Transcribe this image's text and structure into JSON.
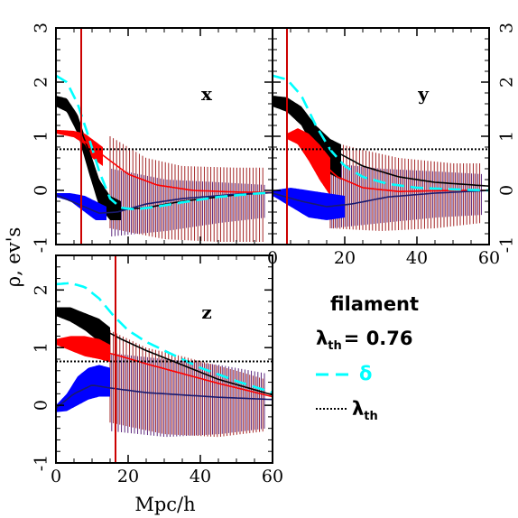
{
  "figure": {
    "xlabel": "Mpc/h",
    "ylabel": "ρ, ev's",
    "colors": {
      "black_band": "#000000",
      "red_band": "#ff0000",
      "blue_band": "#0000ff",
      "red_errorbars": "#9a0f0f",
      "purple_errorbars": "#4a1070",
      "navy_errorbars": "#1a1a6e",
      "delta_curve": "#00ffff",
      "threshold_line": "#000000",
      "vertical_marker": "#cc0000"
    }
  },
  "legend": {
    "title": "filament",
    "threshold_label": "λ",
    "threshold_sub": "th",
    "threshold_value": "= 0.76",
    "delta_label": "δ",
    "line_label": "λ",
    "line_sub": "th"
  },
  "chart_data": [
    {
      "type": "line",
      "panel": "x",
      "xlim": [
        0,
        60
      ],
      "ylim": [
        -1,
        3
      ],
      "xticks": [
        "0",
        "20",
        "40",
        "60"
      ],
      "yticks": [
        "-1",
        "0",
        "1",
        "2",
        "3"
      ],
      "show_xticklabels": false,
      "show_yticklabels": "left",
      "threshold": 0.76,
      "vline": 7,
      "delta": [
        [
          0,
          2.12
        ],
        [
          3,
          2.0
        ],
        [
          6,
          1.6
        ],
        [
          9,
          1.0
        ],
        [
          12,
          0.35
        ],
        [
          15,
          -0.15
        ],
        [
          18,
          -0.32
        ],
        [
          22,
          -0.35
        ],
        [
          28,
          -0.3
        ],
        [
          35,
          -0.22
        ],
        [
          45,
          -0.12
        ],
        [
          55,
          -0.06
        ],
        [
          60,
          -0.04
        ]
      ],
      "black": {
        "upper": [
          [
            0,
            1.75
          ],
          [
            3,
            1.7
          ],
          [
            6,
            1.4
          ],
          [
            9,
            0.8
          ],
          [
            12,
            0.2
          ],
          [
            15,
            -0.1
          ],
          [
            18,
            -0.2
          ]
        ],
        "lower": [
          [
            0,
            1.55
          ],
          [
            3,
            1.45
          ],
          [
            6,
            1.05
          ],
          [
            9,
            0.35
          ],
          [
            12,
            -0.3
          ],
          [
            15,
            -0.55
          ],
          [
            18,
            -0.55
          ]
        ],
        "mean": [
          [
            0,
            1.65
          ],
          [
            5,
            1.45
          ],
          [
            9,
            0.75
          ],
          [
            13,
            -0.05
          ],
          [
            18,
            -0.35
          ],
          [
            25,
            -0.32
          ],
          [
            35,
            -0.2
          ],
          [
            50,
            -0.08
          ],
          [
            60,
            -0.04
          ]
        ]
      },
      "red": {
        "upper": [
          [
            0,
            1.12
          ],
          [
            5,
            1.1
          ],
          [
            8,
            1.05
          ],
          [
            10,
            0.95
          ],
          [
            13,
            0.8
          ]
        ],
        "lower": [
          [
            0,
            1.05
          ],
          [
            5,
            0.98
          ],
          [
            8,
            0.85
          ],
          [
            10,
            0.6
          ],
          [
            13,
            0.45
          ]
        ],
        "mean": [
          [
            0,
            1.1
          ],
          [
            6,
            1.0
          ],
          [
            10,
            0.8
          ],
          [
            15,
            0.55
          ],
          [
            20,
            0.3
          ],
          [
            28,
            0.1
          ],
          [
            38,
            0.0
          ],
          [
            50,
            -0.03
          ],
          [
            60,
            -0.04
          ]
        ]
      },
      "blue": {
        "upper": [
          [
            0,
            -0.05
          ],
          [
            4,
            -0.05
          ],
          [
            8,
            -0.1
          ],
          [
            11,
            -0.2
          ],
          [
            14,
            -0.3
          ]
        ],
        "lower": [
          [
            0,
            -0.12
          ],
          [
            4,
            -0.2
          ],
          [
            8,
            -0.4
          ],
          [
            11,
            -0.55
          ],
          [
            14,
            -0.55
          ]
        ],
        "mean": [
          [
            0,
            -0.08
          ],
          [
            6,
            -0.25
          ],
          [
            12,
            -0.42
          ],
          [
            17,
            -0.4
          ],
          [
            25,
            -0.25
          ],
          [
            35,
            -0.15
          ],
          [
            50,
            -0.07
          ],
          [
            60,
            -0.04
          ]
        ]
      },
      "errorbars": {
        "from": 15,
        "to": 58,
        "step": 0.9,
        "red_top": [
          [
            15,
            1.0
          ],
          [
            25,
            0.6
          ],
          [
            35,
            0.45
          ],
          [
            50,
            0.42
          ],
          [
            58,
            0.42
          ]
        ],
        "red_bottom": [
          [
            15,
            -0.7
          ],
          [
            30,
            -0.9
          ],
          [
            45,
            -0.95
          ],
          [
            58,
            -0.95
          ]
        ],
        "navy_top": [
          [
            15,
            0.4
          ],
          [
            30,
            0.2
          ],
          [
            45,
            0.15
          ],
          [
            58,
            0.1
          ]
        ],
        "navy_bottom": [
          [
            15,
            -0.85
          ],
          [
            30,
            -0.75
          ],
          [
            45,
            -0.6
          ],
          [
            58,
            -0.5
          ]
        ]
      }
    },
    {
      "type": "line",
      "panel": "y",
      "xlim": [
        0,
        60
      ],
      "ylim": [
        -1,
        3
      ],
      "xticks": [
        "0",
        "20",
        "40",
        "60"
      ],
      "yticks": [
        "-1",
        "0",
        "1",
        "2",
        "3"
      ],
      "show_xticklabels": true,
      "show_yticklabels": "right",
      "threshold": 0.76,
      "vline": 4,
      "delta": [
        [
          0,
          2.12
        ],
        [
          4,
          2.05
        ],
        [
          8,
          1.75
        ],
        [
          12,
          1.2
        ],
        [
          16,
          0.75
        ],
        [
          20,
          0.45
        ],
        [
          25,
          0.25
        ],
        [
          32,
          0.12
        ],
        [
          40,
          0.05
        ],
        [
          50,
          0.02
        ],
        [
          60,
          0.0
        ]
      ],
      "black": {
        "upper": [
          [
            0,
            1.75
          ],
          [
            4,
            1.72
          ],
          [
            8,
            1.55
          ],
          [
            12,
            1.2
          ],
          [
            16,
            0.95
          ],
          [
            19,
            0.85
          ]
        ],
        "lower": [
          [
            0,
            1.55
          ],
          [
            4,
            1.45
          ],
          [
            8,
            1.2
          ],
          [
            12,
            0.7
          ],
          [
            16,
            0.3
          ],
          [
            19,
            0.2
          ]
        ],
        "mean": [
          [
            0,
            1.65
          ],
          [
            6,
            1.45
          ],
          [
            12,
            1.05
          ],
          [
            18,
            0.7
          ],
          [
            25,
            0.45
          ],
          [
            35,
            0.25
          ],
          [
            45,
            0.15
          ],
          [
            60,
            0.08
          ]
        ]
      },
      "red": {
        "upper": [
          [
            4,
            1.05
          ],
          [
            7,
            1.15
          ],
          [
            10,
            1.05
          ],
          [
            13,
            0.85
          ],
          [
            16,
            0.6
          ]
        ],
        "lower": [
          [
            4,
            0.95
          ],
          [
            7,
            0.85
          ],
          [
            10,
            0.55
          ],
          [
            13,
            0.2
          ],
          [
            16,
            -0.1
          ]
        ],
        "mean": [
          [
            4,
            1.0
          ],
          [
            8,
            0.9
          ],
          [
            13,
            0.55
          ],
          [
            18,
            0.25
          ],
          [
            25,
            0.05
          ],
          [
            35,
            -0.02
          ],
          [
            50,
            0.0
          ],
          [
            60,
            0.0
          ]
        ]
      },
      "blue": {
        "upper": [
          [
            0,
            0.0
          ],
          [
            5,
            0.05
          ],
          [
            10,
            0.0
          ],
          [
            15,
            -0.05
          ],
          [
            20,
            -0.1
          ]
        ],
        "lower": [
          [
            0,
            -0.1
          ],
          [
            5,
            -0.3
          ],
          [
            10,
            -0.5
          ],
          [
            15,
            -0.55
          ],
          [
            20,
            -0.5
          ]
        ],
        "mean": [
          [
            0,
            -0.05
          ],
          [
            8,
            -0.2
          ],
          [
            15,
            -0.3
          ],
          [
            22,
            -0.25
          ],
          [
            32,
            -0.12
          ],
          [
            45,
            -0.05
          ],
          [
            60,
            0.0
          ]
        ]
      },
      "errorbars": {
        "from": 16,
        "to": 58,
        "step": 0.9,
        "red_top": [
          [
            16,
            0.9
          ],
          [
            25,
            0.75
          ],
          [
            35,
            0.6
          ],
          [
            50,
            0.5
          ],
          [
            58,
            0.5
          ]
        ],
        "red_bottom": [
          [
            16,
            -0.7
          ],
          [
            30,
            -0.75
          ],
          [
            45,
            -0.7
          ],
          [
            58,
            -0.6
          ]
        ],
        "navy_top": [
          [
            16,
            0.5
          ],
          [
            30,
            0.4
          ],
          [
            45,
            0.35
          ],
          [
            58,
            0.3
          ]
        ],
        "navy_bottom": [
          [
            16,
            -0.7
          ],
          [
            30,
            -0.6
          ],
          [
            45,
            -0.5
          ],
          [
            58,
            -0.45
          ]
        ]
      }
    },
    {
      "type": "line",
      "panel": "z",
      "xlim": [
        0,
        60
      ],
      "ylim": [
        -1,
        2.6
      ],
      "xticks": [
        "0",
        "20",
        "40",
        "60"
      ],
      "yticks": [
        "-1",
        "0",
        "1",
        "2"
      ],
      "show_xticklabels": true,
      "show_yticklabels": "left",
      "threshold": 0.76,
      "vline": 16.5,
      "delta": [
        [
          0,
          2.1
        ],
        [
          4,
          2.12
        ],
        [
          8,
          2.05
        ],
        [
          12,
          1.85
        ],
        [
          16,
          1.55
        ],
        [
          20,
          1.3
        ],
        [
          25,
          1.1
        ],
        [
          30,
          0.95
        ],
        [
          40,
          0.65
        ],
        [
          50,
          0.42
        ],
        [
          60,
          0.22
        ]
      ],
      "black": {
        "upper": [
          [
            0,
            1.7
          ],
          [
            4,
            1.7
          ],
          [
            8,
            1.6
          ],
          [
            12,
            1.5
          ],
          [
            15,
            1.35
          ]
        ],
        "lower": [
          [
            0,
            1.55
          ],
          [
            4,
            1.45
          ],
          [
            8,
            1.3
          ],
          [
            12,
            1.1
          ],
          [
            15,
            0.95
          ]
        ],
        "mean": [
          [
            0,
            1.62
          ],
          [
            6,
            1.55
          ],
          [
            12,
            1.35
          ],
          [
            18,
            1.15
          ],
          [
            25,
            0.95
          ],
          [
            35,
            0.7
          ],
          [
            45,
            0.45
          ],
          [
            60,
            0.18
          ]
        ]
      },
      "red": {
        "upper": [
          [
            0,
            1.15
          ],
          [
            4,
            1.2
          ],
          [
            8,
            1.2
          ],
          [
            12,
            1.15
          ],
          [
            15,
            1.05
          ]
        ],
        "lower": [
          [
            0,
            1.05
          ],
          [
            4,
            0.95
          ],
          [
            8,
            0.85
          ],
          [
            12,
            0.8
          ],
          [
            15,
            0.75
          ]
        ],
        "mean": [
          [
            0,
            1.12
          ],
          [
            6,
            1.05
          ],
          [
            12,
            0.95
          ],
          [
            18,
            0.85
          ],
          [
            25,
            0.72
          ],
          [
            35,
            0.55
          ],
          [
            45,
            0.38
          ],
          [
            60,
            0.15
          ]
        ]
      },
      "blue": {
        "upper": [
          [
            0,
            0.0
          ],
          [
            3,
            0.2
          ],
          [
            6,
            0.5
          ],
          [
            9,
            0.65
          ],
          [
            12,
            0.7
          ],
          [
            15,
            0.65
          ]
        ],
        "lower": [
          [
            0,
            -0.12
          ],
          [
            3,
            -0.1
          ],
          [
            6,
            0.0
          ],
          [
            9,
            0.1
          ],
          [
            12,
            0.15
          ],
          [
            15,
            0.15
          ]
        ],
        "mean": [
          [
            0,
            -0.05
          ],
          [
            5,
            0.2
          ],
          [
            10,
            0.35
          ],
          [
            15,
            0.3
          ],
          [
            25,
            0.22
          ],
          [
            35,
            0.18
          ],
          [
            45,
            0.14
          ],
          [
            60,
            0.1
          ]
        ]
      },
      "errorbars": {
        "from": 15,
        "to": 58,
        "step": 0.9,
        "red_top": [
          [
            15,
            1.3
          ],
          [
            25,
            1.0
          ],
          [
            35,
            0.85
          ],
          [
            50,
            0.6
          ],
          [
            58,
            0.45
          ]
        ],
        "red_bottom": [
          [
            15,
            -0.3
          ],
          [
            30,
            -0.5
          ],
          [
            45,
            -0.55
          ],
          [
            58,
            -0.45
          ]
        ],
        "navy_top": [
          [
            15,
            0.9
          ],
          [
            30,
            0.8
          ],
          [
            45,
            0.7
          ],
          [
            58,
            0.55
          ]
        ],
        "navy_bottom": [
          [
            15,
            -0.45
          ],
          [
            30,
            -0.55
          ],
          [
            45,
            -0.5
          ],
          [
            58,
            -0.4
          ]
        ]
      }
    }
  ]
}
